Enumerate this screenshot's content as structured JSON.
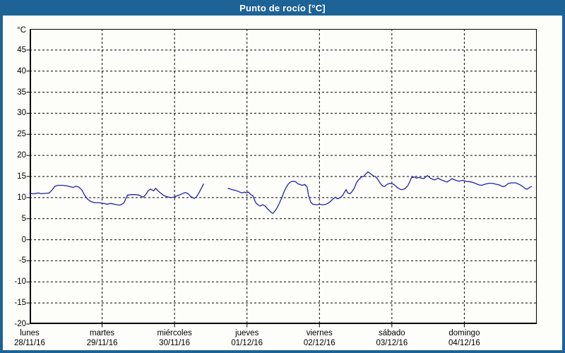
{
  "window": {
    "title": "Punto de rocío [°C]"
  },
  "colors": {
    "titlebar": "#1d6396",
    "frame": "#1d6396",
    "panel_background": "#fdfdfa",
    "plot_background": "#fdfdfa",
    "line": "#2222ab",
    "grid": "#000000",
    "text": "#000000",
    "title_text": "#ffffff"
  },
  "chart_data": {
    "type": "line",
    "title": "Punto de rocío [°C]",
    "y_unit_label": "°C",
    "ylim": [
      -20,
      50
    ],
    "yticks": [
      45,
      40,
      35,
      30,
      25,
      20,
      15,
      10,
      5,
      0,
      -5,
      -10,
      -15,
      -20
    ],
    "grid": "dashed",
    "legend": "none",
    "x_days": [
      {
        "name": "lunes",
        "date": "28/11/16"
      },
      {
        "name": "martes",
        "date": "29/11/16"
      },
      {
        "name": "miércoles",
        "date": "30/11/16"
      },
      {
        "name": "jueves",
        "date": "01/12/16"
      },
      {
        "name": "viernes",
        "date": "02/12/16"
      },
      {
        "name": "sábado",
        "date": "03/12/16"
      },
      {
        "name": "domingo",
        "date": "04/12/16"
      }
    ],
    "series": [
      {
        "name": "Punto de rocío",
        "unit": "°C",
        "x_unit": "days from 28/11/16 00:00",
        "segments": [
          [
            [
              0.0,
              11.0
            ],
            [
              0.06,
              10.9
            ],
            [
              0.12,
              11.1
            ],
            [
              0.16,
              10.9
            ],
            [
              0.2,
              11.0
            ],
            [
              0.23,
              11.0
            ],
            [
              0.27,
              11.1
            ],
            [
              0.31,
              11.8
            ],
            [
              0.35,
              12.7
            ],
            [
              0.39,
              12.9
            ],
            [
              0.45,
              12.9
            ],
            [
              0.51,
              12.8
            ],
            [
              0.55,
              12.6
            ],
            [
              0.6,
              12.4
            ],
            [
              0.64,
              12.7
            ],
            [
              0.68,
              12.5
            ],
            [
              0.72,
              11.8
            ],
            [
              0.76,
              10.5
            ],
            [
              0.8,
              9.6
            ],
            [
              0.84,
              9.1
            ],
            [
              0.89,
              8.8
            ],
            [
              0.94,
              8.8
            ],
            [
              0.99,
              8.7
            ],
            [
              1.03,
              8.6
            ],
            [
              1.07,
              8.4
            ],
            [
              1.11,
              8.6
            ],
            [
              1.15,
              8.5
            ],
            [
              1.2,
              8.3
            ],
            [
              1.25,
              8.2
            ],
            [
              1.3,
              8.7
            ],
            [
              1.35,
              10.6
            ],
            [
              1.4,
              10.7
            ],
            [
              1.46,
              10.7
            ],
            [
              1.51,
              10.6
            ],
            [
              1.54,
              10.3
            ],
            [
              1.57,
              10.1
            ],
            [
              1.61,
              10.9
            ],
            [
              1.64,
              11.7
            ],
            [
              1.67,
              12.0
            ],
            [
              1.71,
              11.6
            ],
            [
              1.74,
              12.2
            ],
            [
              1.76,
              11.8
            ],
            [
              1.8,
              11.2
            ],
            [
              1.85,
              10.5
            ],
            [
              1.9,
              10.2
            ],
            [
              1.95,
              10.0
            ],
            [
              1.99,
              10.1
            ],
            [
              2.03,
              10.4
            ],
            [
              2.08,
              10.7
            ],
            [
              2.13,
              11.1
            ],
            [
              2.15,
              11.2
            ],
            [
              2.19,
              10.9
            ],
            [
              2.22,
              10.3
            ],
            [
              2.27,
              9.8
            ],
            [
              2.3,
              10.1
            ],
            [
              2.34,
              11.2
            ],
            [
              2.37,
              12.2
            ],
            [
              2.4,
              13.2
            ]
          ],
          [
            [
              2.74,
              12.2
            ],
            [
              2.79,
              11.9
            ],
            [
              2.86,
              11.6
            ],
            [
              2.93,
              11.1
            ],
            [
              2.97,
              11.3
            ],
            [
              2.99,
              11.1
            ],
            [
              3.02,
              11.3
            ],
            [
              3.05,
              10.7
            ],
            [
              3.08,
              10.5
            ],
            [
              3.12,
              8.8
            ],
            [
              3.15,
              8.3
            ],
            [
              3.18,
              8.0
            ],
            [
              3.22,
              8.3
            ],
            [
              3.25,
              8.0
            ],
            [
              3.28,
              7.4
            ],
            [
              3.31,
              6.9
            ],
            [
              3.34,
              6.4
            ],
            [
              3.36,
              6.3
            ],
            [
              3.39,
              6.9
            ],
            [
              3.42,
              7.7
            ],
            [
              3.45,
              8.8
            ],
            [
              3.48,
              9.9
            ],
            [
              3.51,
              11.3
            ],
            [
              3.54,
              12.4
            ],
            [
              3.57,
              13.2
            ],
            [
              3.6,
              13.7
            ],
            [
              3.63,
              13.9
            ],
            [
              3.67,
              13.8
            ],
            [
              3.7,
              13.3
            ],
            [
              3.73,
              13.1
            ],
            [
              3.76,
              12.9
            ],
            [
              3.8,
              13.1
            ],
            [
              3.83,
              12.5
            ],
            [
              3.85,
              10.5
            ],
            [
              3.88,
              8.9
            ],
            [
              3.91,
              8.4
            ],
            [
              3.96,
              8.3
            ],
            [
              4.0,
              8.4
            ],
            [
              4.05,
              8.3
            ],
            [
              4.09,
              8.4
            ],
            [
              4.14,
              8.9
            ],
            [
              4.19,
              9.7
            ],
            [
              4.22,
              10.1
            ],
            [
              4.25,
              9.7
            ],
            [
              4.29,
              10.0
            ],
            [
              4.32,
              10.5
            ],
            [
              4.35,
              11.4
            ],
            [
              4.37,
              11.9
            ],
            [
              4.39,
              11.1
            ],
            [
              4.42,
              10.9
            ],
            [
              4.45,
              11.4
            ],
            [
              4.48,
              12.2
            ],
            [
              4.51,
              13.5
            ],
            [
              4.54,
              14.2
            ],
            [
              4.58,
              14.9
            ],
            [
              4.61,
              15.0
            ],
            [
              4.64,
              15.6
            ],
            [
              4.67,
              16.1
            ],
            [
              4.71,
              15.6
            ],
            [
              4.74,
              15.2
            ],
            [
              4.78,
              14.9
            ],
            [
              4.81,
              14.2
            ],
            [
              4.84,
              13.4
            ],
            [
              4.87,
              12.8
            ],
            [
              4.9,
              12.6
            ],
            [
              4.93,
              13.1
            ],
            [
              4.97,
              13.4
            ],
            [
              5.02,
              13.2
            ],
            [
              5.05,
              12.8
            ],
            [
              5.08,
              12.3
            ],
            [
              5.12,
              11.9
            ],
            [
              5.15,
              11.9
            ],
            [
              5.18,
              12.1
            ],
            [
              5.22,
              12.8
            ],
            [
              5.25,
              13.9
            ],
            [
              5.27,
              14.7
            ],
            [
              5.31,
              14.9
            ],
            [
              5.34,
              14.6
            ],
            [
              5.37,
              14.8
            ],
            [
              5.41,
              14.6
            ],
            [
              5.44,
              14.5
            ],
            [
              5.49,
              15.2
            ],
            [
              5.54,
              14.5
            ],
            [
              5.59,
              14.2
            ],
            [
              5.64,
              14.6
            ],
            [
              5.68,
              14.2
            ],
            [
              5.73,
              13.9
            ],
            [
              5.76,
              13.7
            ],
            [
              5.8,
              14.1
            ],
            [
              5.83,
              14.5
            ],
            [
              5.88,
              14.1
            ],
            [
              5.93,
              13.9
            ],
            [
              5.98,
              14.1
            ],
            [
              6.01,
              13.9
            ],
            [
              6.05,
              13.8
            ],
            [
              6.1,
              13.7
            ],
            [
              6.15,
              13.4
            ],
            [
              6.2,
              13.0
            ],
            [
              6.24,
              12.9
            ],
            [
              6.29,
              13.2
            ],
            [
              6.34,
              13.4
            ],
            [
              6.39,
              13.4
            ],
            [
              6.43,
              13.2
            ],
            [
              6.48,
              13.0
            ],
            [
              6.53,
              12.6
            ],
            [
              6.56,
              12.7
            ],
            [
              6.61,
              13.4
            ],
            [
              6.66,
              13.5
            ],
            [
              6.71,
              13.5
            ],
            [
              6.76,
              13.1
            ],
            [
              6.81,
              12.6
            ],
            [
              6.84,
              12.1
            ],
            [
              6.87,
              12.0
            ],
            [
              6.9,
              12.4
            ],
            [
              6.93,
              12.6
            ]
          ]
        ]
      }
    ]
  }
}
